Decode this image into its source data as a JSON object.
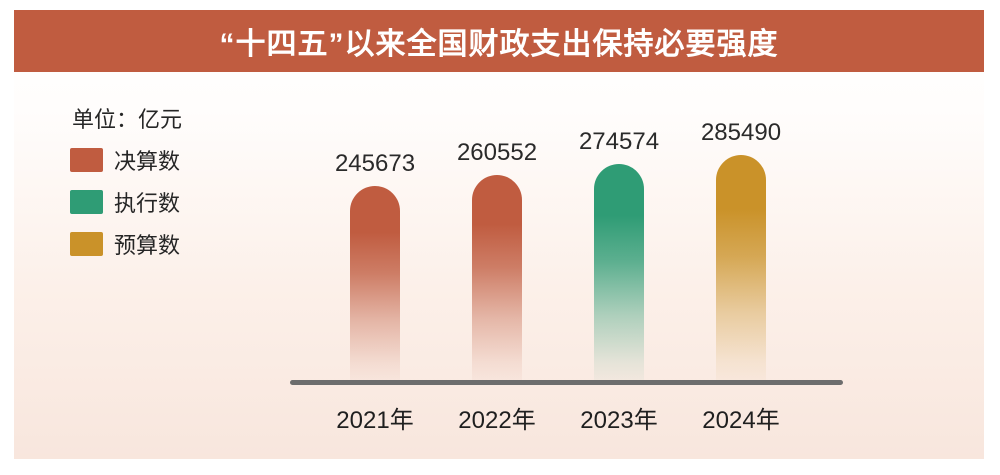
{
  "title": "“十四五”以来全国财政支出保持必要强度",
  "unit_label": "单位：亿元",
  "legend": [
    {
      "label": "决算数",
      "color": "#c05c40"
    },
    {
      "label": "执行数",
      "color": "#2f9c75"
    },
    {
      "label": "预算数",
      "color": "#ca9229"
    }
  ],
  "colors": {
    "banner_bg": "#c05c40",
    "title_text": "#ffffff",
    "panel_gradient_top": "#ffffff",
    "panel_gradient_bottom": "#f8e6dd",
    "axis_line": "#6d6d6d",
    "label_text": "#262626"
  },
  "chart_data": {
    "type": "bar",
    "title": "“十四五”以来全国财政支出保持必要强度",
    "unit": "亿元",
    "categories": [
      "2021年",
      "2022年",
      "2023年",
      "2024年"
    ],
    "values": [
      245673,
      260552,
      274574,
      285490
    ],
    "bar_series": [
      "决算数",
      "决算数",
      "执行数",
      "预算数"
    ],
    "bar_colors": [
      "#c05c40",
      "#c05c40",
      "#2f9c75",
      "#ca9229"
    ],
    "ylim": [
      0,
      285490
    ],
    "grid": false,
    "legend_position": "left"
  }
}
